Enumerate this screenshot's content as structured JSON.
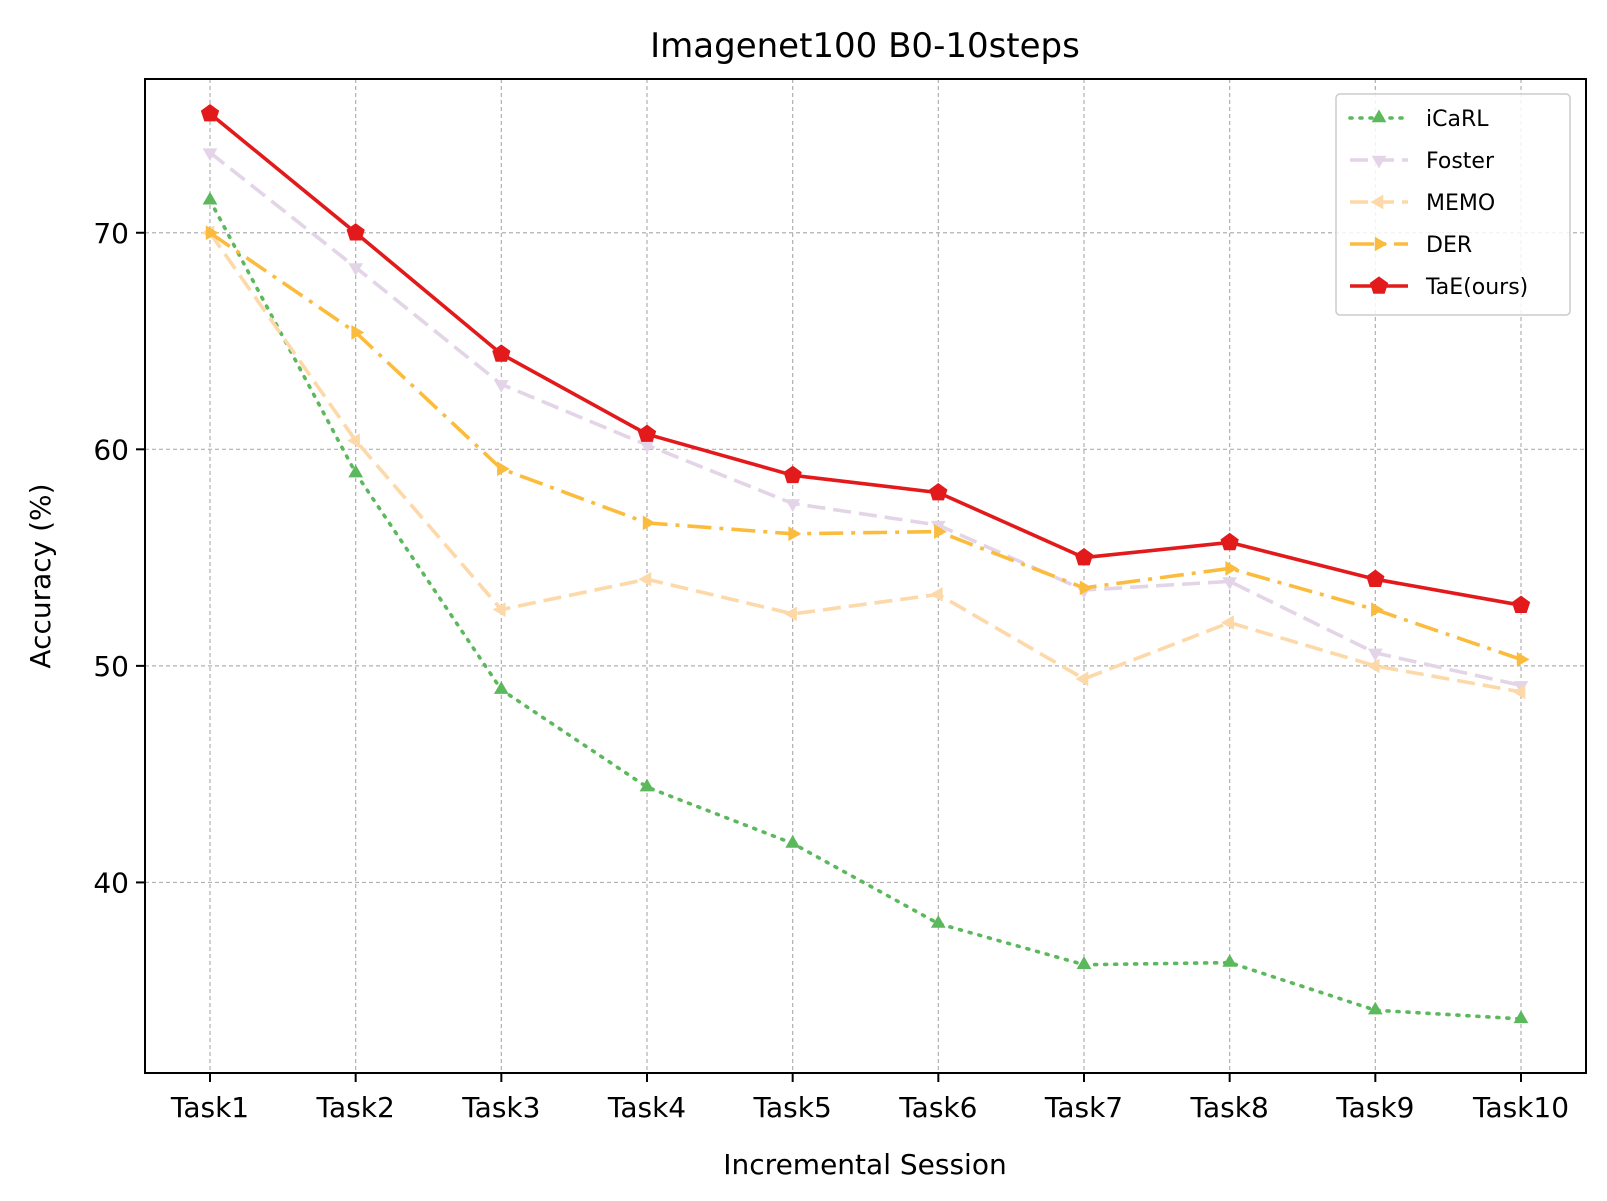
{
  "chart_data": {
    "type": "line",
    "title": "Imagenet100 B0-10steps",
    "xlabel": "Incremental Session",
    "ylabel": "Accuracy (%)",
    "categories": [
      "Task1",
      "Task2",
      "Task3",
      "Task4",
      "Task5",
      "Task6",
      "Task7",
      "Task8",
      "Task9",
      "Task10"
    ],
    "yticks": [
      40,
      50,
      60,
      70
    ],
    "ylim": [
      31.2,
      77.1
    ],
    "grid": true,
    "legend_position": "top-right",
    "series": [
      {
        "name": "iCaRL",
        "color": "#5cb85c",
        "style": "dotted",
        "marker": "triangle-up",
        "values": [
          71.5,
          58.9,
          48.9,
          44.4,
          41.8,
          38.1,
          36.2,
          36.3,
          34.1,
          33.7
        ]
      },
      {
        "name": "Foster",
        "color": "#e3d4e8",
        "style": "dashed",
        "marker": "triangle-down",
        "values": [
          73.7,
          68.4,
          63.0,
          60.2,
          57.5,
          56.5,
          53.5,
          53.9,
          50.6,
          49.1
        ]
      },
      {
        "name": "MEMO",
        "color": "#fdd8a8",
        "style": "dashed",
        "marker": "triangle-left",
        "values": [
          70.0,
          60.4,
          52.6,
          54.0,
          52.4,
          53.3,
          49.4,
          52.0,
          50.0,
          48.8
        ]
      },
      {
        "name": "DER",
        "color": "#fbbc3e",
        "style": "dashdot",
        "marker": "triangle-right",
        "values": [
          70.0,
          65.4,
          59.1,
          56.6,
          56.1,
          56.2,
          53.6,
          54.5,
          52.6,
          50.3
        ]
      },
      {
        "name": "TaE(ours)",
        "color": "#e31a1c",
        "style": "solid",
        "marker": "pentagon",
        "values": [
          75.5,
          70.0,
          64.4,
          60.7,
          58.8,
          58.0,
          55.0,
          55.7,
          54.0,
          52.8
        ]
      }
    ]
  }
}
